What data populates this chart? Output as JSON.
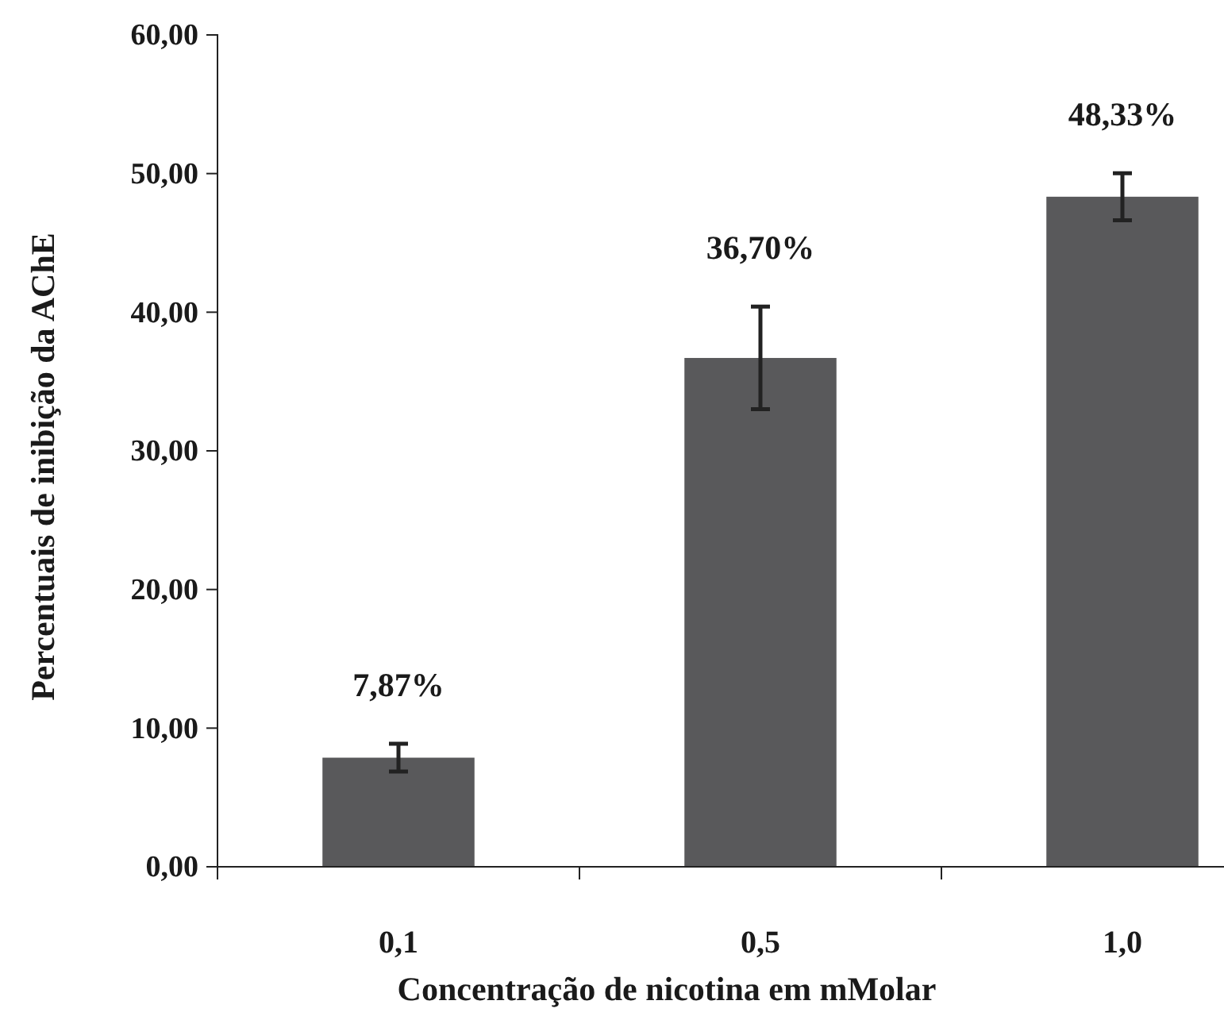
{
  "chart_data": {
    "type": "bar",
    "xlabel": "Concentração de nicotina em mMolar",
    "ylabel": "Percentuais de inibição da AChE",
    "categories": [
      "0,1",
      "0,5",
      "1,0"
    ],
    "values": [
      7.87,
      36.7,
      48.33
    ],
    "color": "#59595b",
    "errors": [
      1.0,
      3.7,
      1.7
    ],
    "value_labels": [
      "7,87%",
      "36,70%",
      "48,33%"
    ],
    "ylim": [
      0,
      60
    ],
    "yticks": [
      {
        "value": 0,
        "label": "0,00"
      },
      {
        "value": 10,
        "label": "10,00"
      },
      {
        "value": 20,
        "label": "20,00"
      },
      {
        "value": 30,
        "label": "30,00"
      },
      {
        "value": 40,
        "label": "40,00"
      },
      {
        "value": 50,
        "label": "50,00"
      },
      {
        "value": 60,
        "label": "60,00"
      }
    ],
    "grid": false
  }
}
